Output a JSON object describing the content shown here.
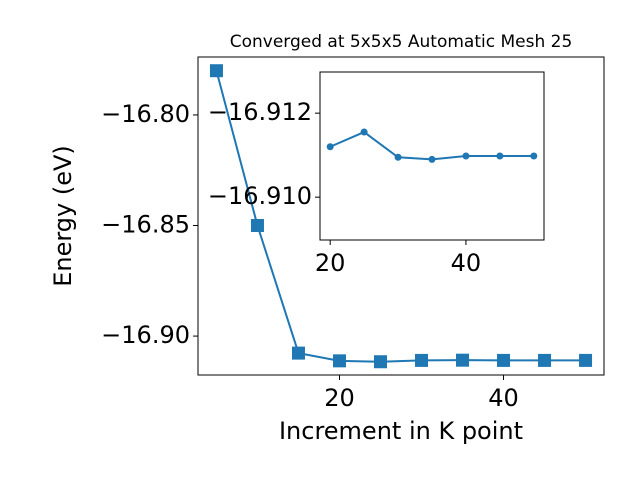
{
  "chart_data": [
    {
      "type": "line",
      "title": "Converged at 5x5x5 Automatic Mesh 25",
      "x_label": "Increment in K point",
      "y_label": "Energy (eV)",
      "x": [
        5,
        10,
        15,
        20,
        25,
        30,
        35,
        40,
        45,
        50
      ],
      "series": [
        {
          "color": "#1f77b4",
          "marker": "square",
          "values": [
            -16.78,
            -16.85,
            -16.9077,
            -16.9112,
            -16.9116,
            -16.911,
            -16.9109,
            -16.911,
            -16.911,
            -16.911
          ]
        }
      ],
      "xlim": [
        2.75,
        52.25
      ],
      "ylim": [
        -16.9176,
        -16.7738
      ],
      "xticks": [
        20,
        40
      ],
      "yticks": [
        {
          "value": -16.8,
          "label": "−16.80"
        },
        {
          "value": -16.85,
          "label": "−16.85"
        },
        {
          "value": -16.9,
          "label": "−16.90"
        }
      ]
    },
    {
      "type": "line",
      "x": [
        20,
        25,
        30,
        35,
        40,
        45,
        50
      ],
      "series": [
        {
          "color": "#1f77b4",
          "marker": "circle",
          "values": [
            -16.9112,
            -16.91155,
            -16.91095,
            -16.9109,
            -16.91098,
            -16.91098,
            -16.91098
          ]
        }
      ],
      "xlim": [
        18.5,
        51.5
      ],
      "ylim": [
        -16.90898,
        -16.91298
      ],
      "xticks": [
        20,
        40
      ],
      "yticks": [
        {
          "value": -16.912,
          "label": "−16.912"
        },
        {
          "value": -16.91,
          "label": "−16.910"
        }
      ]
    }
  ]
}
